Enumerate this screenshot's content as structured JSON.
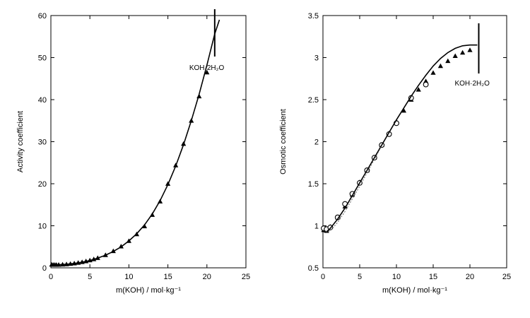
{
  "chart_data": [
    {
      "type": "scatter",
      "title": "",
      "xlabel": "m(KOH) / mol·kg⁻¹",
      "ylabel": "Activity coefficient",
      "xlim": [
        0,
        25
      ],
      "ylim": [
        0,
        60
      ],
      "xticks": [
        0,
        5,
        10,
        15,
        20,
        25
      ],
      "yticks": [
        0,
        10,
        20,
        30,
        40,
        50,
        60
      ],
      "grid": false,
      "series": [
        {
          "marker": "triangle",
          "x": [
            0.1,
            0.3,
            0.5,
            0.7,
            1.0,
            1.5,
            2.0,
            2.5,
            3.0,
            3.5,
            4.0,
            4.5,
            5.0,
            5.5,
            6.0,
            7.0,
            8.0,
            9.0,
            10.0,
            11.0,
            12.0,
            13.0,
            14.0,
            15.0,
            16.0,
            17.0,
            18.0,
            19.0,
            20.0
          ],
          "y": [
            0.78,
            0.74,
            0.73,
            0.73,
            0.75,
            0.8,
            0.87,
            0.96,
            1.08,
            1.22,
            1.38,
            1.58,
            1.8,
            2.06,
            2.35,
            3.05,
            4.0,
            5.1,
            6.4,
            8.0,
            9.9,
            12.6,
            15.8,
            20.0,
            24.4,
            29.5,
            35.0,
            40.8,
            46.5
          ]
        },
        {
          "name": "",
          "style": "line",
          "x": [
            0,
            0.5,
            1,
            2,
            3,
            4,
            5,
            6,
            7,
            8,
            9,
            10,
            11,
            12,
            13,
            14,
            15,
            16,
            17,
            18,
            19,
            20,
            21,
            21.6
          ],
          "y": [
            0.75,
            0.73,
            0.74,
            0.85,
            1.05,
            1.35,
            1.75,
            2.3,
            3.0,
            3.9,
            5.0,
            6.4,
            8.1,
            10.2,
            12.8,
            16.0,
            19.8,
            24.2,
            29.3,
            35.0,
            41.3,
            48.2,
            55.6,
            59.0
          ]
        }
      ],
      "annotations": [
        {
          "text": "KOH·2H₂O",
          "x": 21.0
        }
      ]
    },
    {
      "type": "scatter",
      "title": "",
      "xlabel": "m(KOH) / mol·kg⁻¹",
      "ylabel": "Osmotic coefficient",
      "xlim": [
        0,
        25
      ],
      "ylim": [
        0.5,
        3.5
      ],
      "xticks": [
        0,
        5,
        10,
        15,
        20,
        25
      ],
      "yticks": [
        0.5,
        1,
        1.5,
        2,
        2.5,
        3,
        3.5
      ],
      "grid": false,
      "series": [
        {
          "marker": "triangle",
          "x": [
            0.1,
            0.5,
            1,
            2,
            3,
            4,
            5,
            6,
            7,
            8,
            9,
            10,
            11,
            12,
            13,
            14,
            15,
            16,
            17,
            18,
            19,
            20
          ],
          "y": [
            0.95,
            0.94,
            0.99,
            1.1,
            1.23,
            1.37,
            1.52,
            1.66,
            1.81,
            1.96,
            2.1,
            2.24,
            2.37,
            2.5,
            2.62,
            2.72,
            2.82,
            2.9,
            2.96,
            3.02,
            3.06,
            3.09
          ]
        },
        {
          "marker": "circle",
          "x": [
            0.1,
            0.5,
            1,
            2,
            3,
            4,
            5,
            6,
            7,
            8,
            9,
            10,
            12,
            14
          ],
          "y": [
            0.97,
            0.96,
            0.98,
            1.1,
            1.26,
            1.38,
            1.51,
            1.66,
            1.81,
            1.96,
            2.09,
            2.22,
            2.52,
            2.68
          ]
        },
        {
          "name": "",
          "style": "line",
          "x": [
            0,
            0.5,
            1,
            2,
            3,
            4,
            5,
            6,
            7,
            8,
            9,
            10,
            11,
            12,
            13,
            14,
            15,
            16,
            17,
            18,
            19,
            20,
            21
          ],
          "y": [
            0.93,
            0.93,
            0.97,
            1.08,
            1.21,
            1.36,
            1.51,
            1.66,
            1.81,
            1.96,
            2.11,
            2.26,
            2.4,
            2.54,
            2.67,
            2.79,
            2.9,
            2.99,
            3.06,
            3.11,
            3.14,
            3.15,
            3.15
          ]
        },
        {
          "name": "",
          "style": "dotted",
          "x": [
            0,
            0.5,
            1,
            2,
            3,
            4,
            5,
            6,
            7,
            8
          ],
          "y": [
            0.95,
            0.93,
            0.94,
            1.04,
            1.17,
            1.32,
            1.47,
            1.63,
            1.79,
            1.95
          ]
        }
      ],
      "annotations": [
        {
          "text": "KOH·2H₂O",
          "x": 21.2
        }
      ]
    }
  ]
}
